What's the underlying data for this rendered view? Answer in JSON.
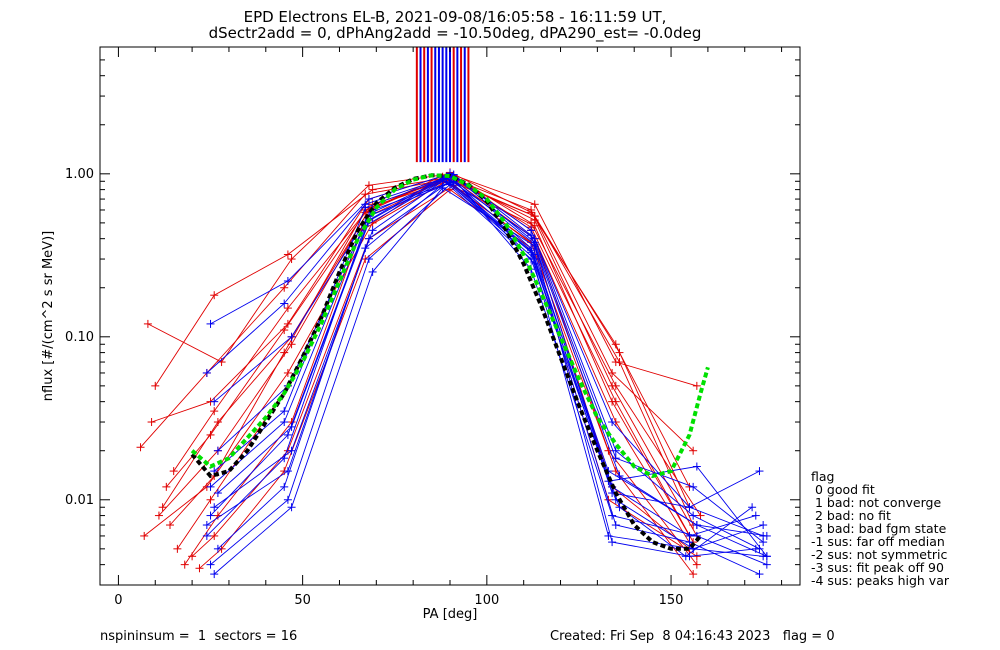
{
  "chart_data": {
    "type": "line",
    "title_line1": "EPD Electrons EL-B, 2021-09-08/16:05:58 - 16:11:59 UT,",
    "title_line2": "dSectr2add = 0, dPhAng2add = -10.50deg, dPA290_est=  -0.0deg",
    "xlabel": "PA [deg]",
    "ylabel": "nflux [#/(cm^2 s sr MeV)]",
    "xlim": [
      -5,
      185
    ],
    "ylim": [
      0.003,
      6.0
    ],
    "y_log_scale": true,
    "x_ticks": [
      0,
      50,
      100,
      150
    ],
    "x_tick_labels": [
      "0",
      "50",
      "100",
      "150"
    ],
    "y_ticks": [
      0.01,
      0.1,
      1.0
    ],
    "y_tick_labels": [
      "0.01",
      "0.10",
      "1.00"
    ],
    "series_colors": {
      "red": "#e00000",
      "blue": "#0000ee",
      "green_fit": "#00e000",
      "black_fit": "#000000"
    },
    "red_profiles": [
      {
        "x": [
          8,
          28,
          47,
          68,
          90,
          113,
          135,
          157
        ],
        "y": [
          0.12,
          0.07,
          0.3,
          0.85,
          1.0,
          0.65,
          0.07,
          0.05
        ]
      },
      {
        "x": [
          10,
          26,
          46,
          69,
          90,
          112,
          134,
          156
        ],
        "y": [
          0.05,
          0.18,
          0.32,
          0.8,
          0.95,
          0.6,
          0.06,
          0.02
        ]
      },
      {
        "x": [
          6,
          24,
          45,
          67,
          89,
          113,
          136,
          155
        ],
        "y": [
          0.021,
          0.06,
          0.2,
          0.75,
          0.92,
          0.55,
          0.08,
          0.012
        ]
      },
      {
        "x": [
          9,
          25,
          46,
          68,
          90,
          112,
          135,
          158
        ],
        "y": [
          0.03,
          0.04,
          0.12,
          0.7,
          1.0,
          0.5,
          0.05,
          0.008
        ]
      },
      {
        "x": [
          12,
          27,
          47,
          69,
          88,
          113,
          134,
          155
        ],
        "y": [
          0.009,
          0.03,
          0.1,
          0.65,
          0.9,
          0.48,
          0.04,
          0.006
        ]
      },
      {
        "x": [
          14,
          26,
          45,
          67,
          91,
          112,
          135,
          156
        ],
        "y": [
          0.007,
          0.014,
          0.08,
          0.6,
          0.98,
          0.45,
          0.03,
          0.005
        ]
      },
      {
        "x": [
          16,
          25,
          46,
          68,
          90,
          113,
          133,
          157
        ],
        "y": [
          0.005,
          0.01,
          0.05,
          0.55,
          0.95,
          0.4,
          0.02,
          0.004
        ]
      },
      {
        "x": [
          18,
          27,
          47,
          66,
          89,
          112,
          135,
          156
        ],
        "y": [
          0.004,
          0.008,
          0.03,
          0.45,
          0.9,
          0.38,
          0.015,
          0.0035
        ]
      },
      {
        "x": [
          20,
          26,
          46,
          68,
          91,
          113,
          134,
          155
        ],
        "y": [
          0.0045,
          0.006,
          0.02,
          0.4,
          0.85,
          0.36,
          0.012,
          0.005
        ]
      },
      {
        "x": [
          22,
          28,
          45,
          67,
          90,
          112,
          133,
          157
        ],
        "y": [
          0.0038,
          0.005,
          0.015,
          0.3,
          0.8,
          0.35,
          0.01,
          0.0045
        ]
      },
      {
        "x": [
          7,
          24,
          46,
          69,
          88,
          113,
          136,
          156
        ],
        "y": [
          0.006,
          0.012,
          0.06,
          0.5,
          0.96,
          0.55,
          0.07,
          0.007
        ]
      },
      {
        "x": [
          11,
          27,
          47,
          68,
          90,
          112,
          135,
          155
        ],
        "y": [
          0.008,
          0.02,
          0.09,
          0.6,
          1.02,
          0.58,
          0.09,
          0.009
        ]
      },
      {
        "x": [
          13,
          25,
          45,
          67,
          89,
          113,
          134,
          157
        ],
        "y": [
          0.012,
          0.025,
          0.11,
          0.58,
          0.97,
          0.52,
          0.05,
          0.006
        ]
      },
      {
        "x": [
          15,
          26,
          46,
          68,
          91,
          112,
          135,
          156
        ],
        "y": [
          0.015,
          0.035,
          0.15,
          0.62,
          0.93,
          0.47,
          0.04,
          0.0055
        ]
      }
    ],
    "blue_profiles": [
      {
        "x": [
          25,
          46,
          68,
          90,
          112,
          134,
          155,
          175
        ],
        "y": [
          0.12,
          0.22,
          0.7,
          1.0,
          0.45,
          0.03,
          0.009,
          0.006
        ]
      },
      {
        "x": [
          24,
          45,
          67,
          89,
          113,
          135,
          156,
          174
        ],
        "y": [
          0.06,
          0.16,
          0.65,
          0.95,
          0.4,
          0.02,
          0.008,
          0.005
        ]
      },
      {
        "x": [
          26,
          47,
          69,
          91,
          112,
          133,
          157,
          176
        ],
        "y": [
          0.04,
          0.1,
          0.6,
          0.9,
          0.35,
          0.015,
          0.007,
          0.0045
        ]
      },
      {
        "x": [
          27,
          46,
          68,
          90,
          113,
          134,
          155,
          173
        ],
        "y": [
          0.02,
          0.05,
          0.55,
          0.88,
          0.32,
          0.012,
          0.006,
          0.008
        ]
      },
      {
        "x": [
          25,
          45,
          67,
          88,
          112,
          135,
          156,
          175
        ],
        "y": [
          0.012,
          0.03,
          0.5,
          0.92,
          0.3,
          0.01,
          0.005,
          0.007
        ]
      },
      {
        "x": [
          26,
          47,
          69,
          90,
          113,
          136,
          154,
          172
        ],
        "y": [
          0.009,
          0.02,
          0.45,
          0.97,
          0.28,
          0.009,
          0.0045,
          0.009
        ]
      },
      {
        "x": [
          24,
          46,
          68,
          91,
          112,
          134,
          157,
          176
        ],
        "y": [
          0.007,
          0.015,
          0.4,
          0.93,
          0.26,
          0.008,
          0.006,
          0.004
        ]
      },
      {
        "x": [
          27,
          45,
          67,
          89,
          113,
          135,
          155,
          174
        ],
        "y": [
          0.005,
          0.012,
          0.35,
          0.9,
          0.3,
          0.007,
          0.0055,
          0.0035
        ]
      },
      {
        "x": [
          25,
          46,
          68,
          90,
          112,
          133,
          156,
          175
        ],
        "y": [
          0.004,
          0.01,
          0.3,
          0.86,
          0.33,
          0.006,
          0.005,
          0.0045
        ]
      },
      {
        "x": [
          26,
          47,
          69,
          88,
          113,
          134,
          155,
          173
        ],
        "y": [
          0.0035,
          0.009,
          0.25,
          0.82,
          0.36,
          0.0055,
          0.0045,
          0.005
        ]
      },
      {
        "x": [
          24,
          45,
          67,
          91,
          112,
          136,
          157,
          176
        ],
        "y": [
          0.006,
          0.018,
          0.48,
          0.99,
          0.42,
          0.014,
          0.007,
          0.006
        ]
      },
      {
        "x": [
          25,
          46,
          68,
          90,
          113,
          135,
          156,
          175
        ],
        "y": [
          0.008,
          0.025,
          0.52,
          1.01,
          0.38,
          0.018,
          0.012,
          0.0055
        ]
      },
      {
        "x": [
          27,
          47,
          69,
          89,
          112,
          134,
          155,
          174
        ],
        "y": [
          0.011,
          0.028,
          0.58,
          0.94,
          0.34,
          0.011,
          0.009,
          0.015
        ]
      },
      {
        "x": [
          26,
          45,
          67,
          90,
          113,
          133,
          157,
          176
        ],
        "y": [
          0.015,
          0.035,
          0.62,
          0.96,
          0.37,
          0.013,
          0.016,
          0.0045
        ]
      }
    ],
    "green_fit": {
      "x": [
        20,
        25,
        30,
        35,
        40,
        45,
        50,
        55,
        60,
        65,
        70,
        75,
        80,
        85,
        90,
        95,
        100,
        105,
        110,
        115,
        120,
        125,
        130,
        135,
        140,
        145,
        150,
        155,
        158,
        160
      ],
      "y": [
        0.02,
        0.016,
        0.018,
        0.024,
        0.032,
        0.045,
        0.07,
        0.12,
        0.22,
        0.4,
        0.62,
        0.8,
        0.92,
        0.98,
        0.97,
        0.85,
        0.7,
        0.5,
        0.32,
        0.18,
        0.1,
        0.055,
        0.032,
        0.022,
        0.016,
        0.014,
        0.015,
        0.025,
        0.045,
        0.065
      ]
    },
    "black_fit": {
      "x": [
        20,
        25,
        30,
        35,
        40,
        45,
        50,
        55,
        60,
        65,
        70,
        75,
        80,
        85,
        90,
        95,
        100,
        105,
        110,
        115,
        120,
        125,
        130,
        135,
        140,
        145,
        150,
        155,
        158
      ],
      "y": [
        0.019,
        0.014,
        0.015,
        0.02,
        0.03,
        0.045,
        0.075,
        0.13,
        0.25,
        0.45,
        0.66,
        0.82,
        0.93,
        0.98,
        0.97,
        0.86,
        0.68,
        0.46,
        0.28,
        0.15,
        0.075,
        0.038,
        0.02,
        0.011,
        0.007,
        0.0055,
        0.005,
        0.005,
        0.006
      ]
    },
    "center_bars": {
      "x": [
        81,
        82,
        83,
        84,
        85,
        86,
        87,
        88,
        89,
        90,
        91,
        92,
        93,
        94,
        95
      ],
      "colors": [
        "red",
        "blue",
        "red",
        "blue",
        "red",
        "blue",
        "blue",
        "blue",
        "blue",
        "blue",
        "red",
        "blue",
        "red",
        "blue",
        "red"
      ]
    },
    "legend_title": "flag",
    "legend_entries": [
      " 0 good fit",
      " 1 bad: not converge",
      " 2 bad: no fit",
      " 3 bad: bad fgm state",
      "-1 sus: far off median",
      "-2 sus: not symmetric",
      "-3 sus: fit peak off 90",
      "-4 sus: peaks high var"
    ],
    "footer_left": "nspininsum =  1  sectors = 16",
    "footer_right": "Created: Fri Sep  8 04:16:43 2023   flag = 0"
  }
}
